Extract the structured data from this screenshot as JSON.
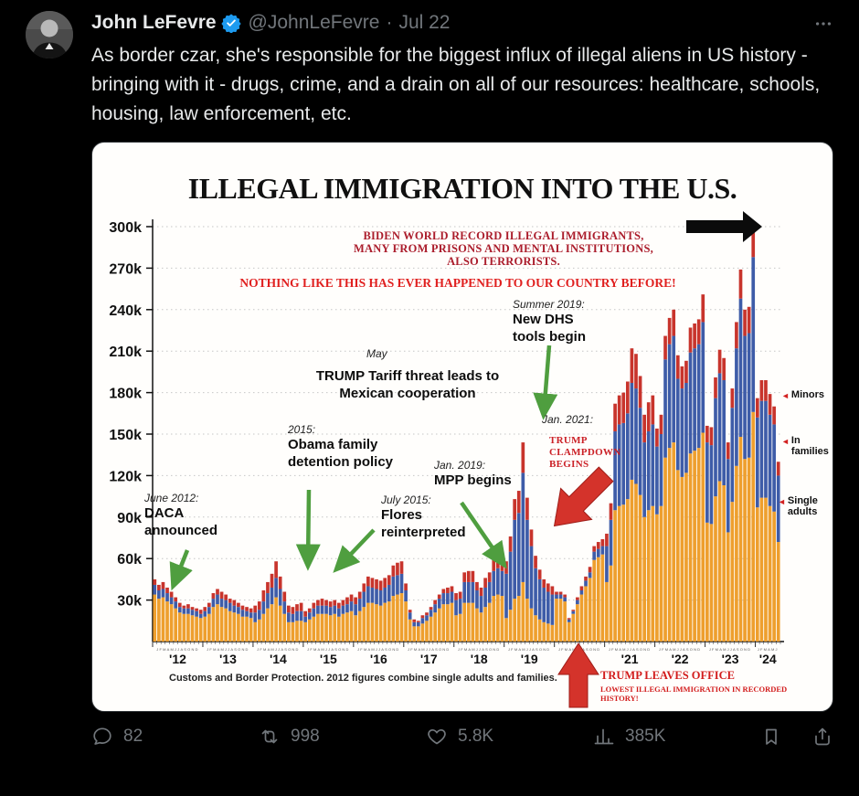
{
  "tweet": {
    "author": "John LeFevre",
    "handle": "@JohnLeFevre",
    "separator": "·",
    "date": "Jul 22",
    "text": "As border czar, she's responsible for the biggest influx of illegal aliens in US history - bringing with it - drugs, crime, and a drain on all of our resources: healthcare, schools, housing, law enforcement, etc."
  },
  "actions": {
    "replies": "82",
    "retweets": "998",
    "likes": "5.8K",
    "views": "385K"
  },
  "icons": {
    "series_pointer": "◄"
  },
  "chart_data": {
    "type": "bar",
    "stacked": true,
    "title": "ILLEGAL IMMIGRATION INTO THE U.S.",
    "ylim": [
      0,
      310
    ],
    "y_ticks": [
      "30k",
      "60k",
      "90k",
      "120k",
      "150k",
      "180k",
      "210k",
      "240k",
      "270k",
      "300k"
    ],
    "x_years": [
      "'12",
      "'13",
      "'14",
      "'15",
      "'16",
      "'17",
      "'18",
      "'19",
      "'20",
      "'21",
      "'22",
      "'23",
      "'24"
    ],
    "series": [
      {
        "name": "Single adults",
        "color": "#EE9F2E",
        "values": [
          34,
          31,
          32,
          29,
          27,
          24,
          21,
          20,
          20,
          19,
          18,
          17,
          18,
          20,
          25,
          27,
          25,
          24,
          22,
          21,
          20,
          18,
          18,
          17,
          14,
          16,
          20,
          24,
          27,
          32,
          26,
          20,
          14,
          14,
          15,
          15,
          14,
          16,
          18,
          20,
          20,
          20,
          19,
          20,
          18,
          20,
          21,
          22,
          19,
          22,
          25,
          28,
          28,
          27,
          26,
          28,
          29,
          33,
          34,
          35,
          29,
          16,
          11,
          11,
          13,
          15,
          18,
          21,
          24,
          27,
          27,
          28,
          19,
          20,
          28,
          28,
          28,
          24,
          21,
          25,
          28,
          33,
          34,
          33,
          17,
          23,
          31,
          33,
          43,
          31,
          24,
          19,
          16,
          14,
          13,
          12,
          31,
          31,
          29,
          14,
          20,
          27,
          34,
          40,
          46,
          59,
          61,
          63,
          43,
          55,
          95,
          98,
          99,
          103,
          117,
          114,
          106,
          90,
          95,
          98,
          92,
          98,
          133,
          140,
          144,
          124,
          119,
          122,
          136,
          138,
          140,
          151,
          86,
          85,
          105,
          116,
          113,
          79,
          101,
          127,
          148,
          132,
          133,
          166,
          97,
          104,
          104,
          98,
          94,
          72
        ]
      },
      {
        "name": "In families",
        "color": "#3E5CA8",
        "values": [
          7,
          6,
          6,
          6,
          5,
          5,
          4,
          4,
          4,
          4,
          4,
          3,
          4,
          5,
          6,
          7,
          6,
          6,
          6,
          5,
          5,
          5,
          4,
          4,
          7,
          7,
          9,
          11,
          12,
          14,
          12,
          9,
          7,
          6,
          7,
          7,
          4,
          5,
          6,
          6,
          6,
          6,
          6,
          6,
          6,
          6,
          6,
          7,
          8,
          9,
          11,
          12,
          11,
          11,
          11,
          11,
          12,
          14,
          14,
          14,
          8,
          5,
          3,
          3,
          4,
          4,
          5,
          6,
          7,
          8,
          8,
          8,
          11,
          11,
          15,
          15,
          15,
          13,
          12,
          14,
          15,
          18,
          19,
          18,
          32,
          42,
          57,
          60,
          79,
          57,
          45,
          34,
          29,
          25,
          23,
          22,
          3,
          3,
          3,
          2,
          2,
          3,
          3,
          4,
          4,
          6,
          6,
          6,
          26,
          33,
          57,
          59,
          59,
          62,
          70,
          69,
          63,
          54,
          57,
          59,
          49,
          52,
          71,
          75,
          77,
          66,
          64,
          65,
          73,
          74,
          75,
          80,
          58,
          57,
          71,
          78,
          76,
          53,
          68,
          85,
          100,
          89,
          90,
          112,
          65,
          70,
          70,
          66,
          63,
          48
        ]
      },
      {
        "name": "Minors",
        "color": "#C8342C",
        "values": [
          4,
          4,
          5,
          4,
          4,
          3,
          3,
          2,
          3,
          2,
          2,
          3,
          3,
          3,
          4,
          4,
          5,
          4,
          3,
          4,
          3,
          3,
          3,
          3,
          5,
          6,
          8,
          8,
          10,
          12,
          9,
          7,
          5,
          5,
          5,
          6,
          4,
          3,
          4,
          4,
          5,
          4,
          4,
          4,
          4,
          4,
          5,
          5,
          5,
          5,
          6,
          7,
          7,
          7,
          7,
          7,
          7,
          8,
          9,
          9,
          5,
          2,
          2,
          1,
          2,
          2,
          2,
          3,
          3,
          3,
          4,
          4,
          5,
          5,
          7,
          8,
          8,
          6,
          6,
          7,
          7,
          9,
          9,
          9,
          9,
          11,
          15,
          16,
          22,
          16,
          12,
          9,
          7,
          6,
          6,
          6,
          2,
          2,
          2,
          1,
          1,
          2,
          3,
          3,
          4,
          4,
          5,
          5,
          9,
          12,
          20,
          21,
          22,
          23,
          25,
          25,
          23,
          20,
          21,
          21,
          13,
          14,
          17,
          19,
          19,
          17,
          16,
          16,
          18,
          18,
          18,
          20,
          12,
          13,
          15,
          17,
          16,
          12,
          14,
          19,
          21,
          19,
          19,
          24,
          14,
          15,
          15,
          15,
          13,
          10
        ]
      }
    ],
    "annotations": {
      "biden_1": "BIDEN WORLD RECORD ILLEGAL IMMIGRANTS,",
      "biden_2": "MANY FROM PRISONS AND MENTAL INSTITUTIONS,",
      "biden_3": "ALSO TERRORISTS.",
      "nothing_like": "NOTHING LIKE THIS HAS EVER HAPPENED TO OUR COUNTRY BEFORE!",
      "dhs_date": "Summer 2019:",
      "dhs_1": "New DHS",
      "dhs_2": "tools begin",
      "may": "May",
      "tariff_1": "TRUMP Tariff threat leads to",
      "tariff_2": "Mexican cooperation",
      "jan2021": "Jan. 2021:",
      "clamp_1": "TRUMP",
      "clamp_2": "CLAMPDOWN",
      "clamp_3": "BEGINS",
      "obama_date": "2015:",
      "obama_1": "Obama family",
      "obama_2": "detention policy",
      "mpp_date": "Jan. 2019:",
      "mpp": "MPP begins",
      "daca_date": "June 2012:",
      "daca_1": "DACA",
      "daca_2": "announced",
      "flores_date": "July 2015:",
      "flores_1": "Flores",
      "flores_2": "reinterpreted",
      "leaves_1": "TRUMP LEAVES OFFICE",
      "leaves_2": "LOWEST ILLEGAL IMMIGRATION IN RECORDED HISTORY!",
      "source_note": "Customs and Border Protection. 2012 figures combine single adults and families."
    }
  }
}
